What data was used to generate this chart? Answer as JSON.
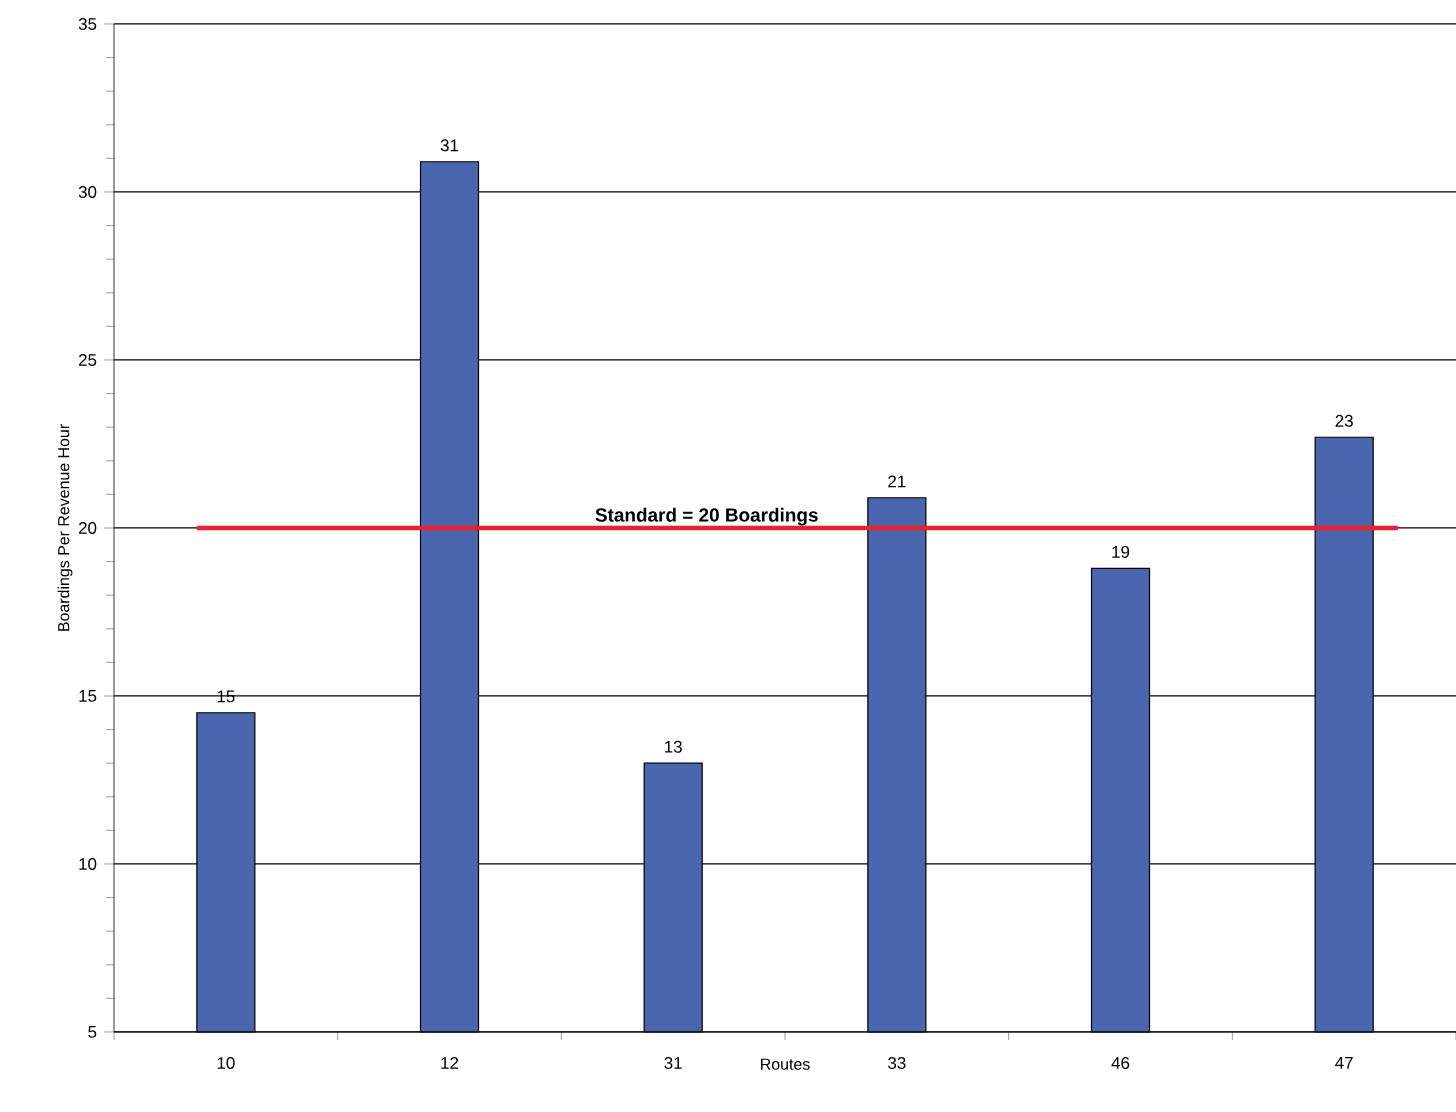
{
  "chart_data": {
    "type": "bar",
    "xlabel": "Routes",
    "ylabel": "Boardings Per Revenue Hour",
    "categories": [
      "10",
      "12",
      "31",
      "33",
      "46",
      "47"
    ],
    "values": [
      14.5,
      30.9,
      13.0,
      20.9,
      18.8,
      22.7
    ],
    "value_labels": [
      "15",
      "31",
      "13",
      "21",
      "19",
      "23"
    ],
    "color": "#4a66ae",
    "ylim": [
      5,
      35
    ],
    "yticks": [
      5,
      10,
      15,
      20,
      25,
      30,
      35
    ],
    "grid": "y",
    "ref_lines": [
      {
        "axis": "y",
        "value": 20,
        "label": "Standard = 20 Boardings",
        "color": "#e8222a"
      }
    ]
  }
}
